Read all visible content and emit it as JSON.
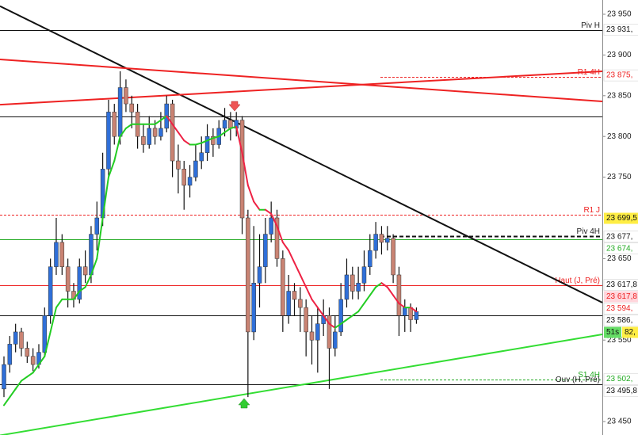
{
  "chart_data": {
    "type": "candlestick",
    "up_color": "#2f6fd8",
    "down_color": "#c98373",
    "ma_up_color": "#22cc22",
    "ma_down_color": "#ee2244",
    "ylim": [
      23450,
      23950
    ],
    "yticks": [
      {
        "value": 23950,
        "label": "23 950"
      },
      {
        "value": 23900,
        "label": "23 900"
      },
      {
        "value": 23850,
        "label": "23 850"
      },
      {
        "value": 23800,
        "label": "23 800"
      },
      {
        "value": 23750,
        "label": "23 750"
      },
      {
        "value": 23650,
        "label": "23 650"
      },
      {
        "value": 23550,
        "label": "23 550"
      },
      {
        "value": 23450,
        "label": "23 450"
      }
    ],
    "candles": [
      [
        23490,
        23530,
        23480,
        23520
      ],
      [
        23520,
        23555,
        23510,
        23545
      ],
      [
        23545,
        23570,
        23535,
        23560
      ],
      [
        23560,
        23565,
        23530,
        23540
      ],
      [
        23540,
        23548,
        23522,
        23530
      ],
      [
        23530,
        23540,
        23512,
        23520
      ],
      [
        23520,
        23545,
        23515,
        23535
      ],
      [
        23535,
        23590,
        23530,
        23580
      ],
      [
        23580,
        23650,
        23570,
        23640
      ],
      [
        23640,
        23700,
        23630,
        23670
      ],
      [
        23670,
        23680,
        23630,
        23640
      ],
      [
        23640,
        23650,
        23590,
        23610
      ],
      [
        23610,
        23620,
        23590,
        23600
      ],
      [
        23600,
        23650,
        23595,
        23640
      ],
      [
        23640,
        23660,
        23620,
        23630
      ],
      [
        23630,
        23690,
        23620,
        23680
      ],
      [
        23680,
        23720,
        23660,
        23700
      ],
      [
        23700,
        23780,
        23690,
        23760
      ],
      [
        23760,
        23845,
        23750,
        23830
      ],
      [
        23830,
        23840,
        23790,
        23800
      ],
      [
        23800,
        23880,
        23790,
        23860
      ],
      [
        23860,
        23870,
        23830,
        23840
      ],
      [
        23840,
        23850,
        23810,
        23830
      ],
      [
        23830,
        23840,
        23785,
        23800
      ],
      [
        23800,
        23815,
        23780,
        23790
      ],
      [
        23790,
        23825,
        23785,
        23810
      ],
      [
        23810,
        23820,
        23790,
        23800
      ],
      [
        23800,
        23830,
        23795,
        23810
      ],
      [
        23810,
        23850,
        23805,
        23840
      ],
      [
        23840,
        23845,
        23750,
        23770
      ],
      [
        23770,
        23790,
        23730,
        23760
      ],
      [
        23760,
        23770,
        23710,
        23740
      ],
      [
        23740,
        23765,
        23725,
        23750
      ],
      [
        23750,
        23790,
        23745,
        23770
      ],
      [
        23770,
        23800,
        23760,
        23780
      ],
      [
        23780,
        23815,
        23770,
        23800
      ],
      [
        23800,
        23810,
        23775,
        23790
      ],
      [
        23790,
        23820,
        23785,
        23810
      ],
      [
        23810,
        23835,
        23800,
        23820
      ],
      [
        23820,
        23830,
        23795,
        23810
      ],
      [
        23810,
        23830,
        23800,
        23820
      ],
      [
        23820,
        23825,
        23680,
        23700
      ],
      [
        23700,
        23710,
        23480,
        23560
      ],
      [
        23560,
        23690,
        23550,
        23620
      ],
      [
        23620,
        23680,
        23590,
        23640
      ],
      [
        23640,
        23700,
        23620,
        23680
      ],
      [
        23680,
        23720,
        23670,
        23700
      ],
      [
        23700,
        23710,
        23640,
        23650
      ],
      [
        23650,
        23660,
        23560,
        23580
      ],
      [
        23580,
        23630,
        23570,
        23610
      ],
      [
        23610,
        23620,
        23580,
        23600
      ],
      [
        23600,
        23615,
        23560,
        23590
      ],
      [
        23590,
        23600,
        23530,
        23560
      ],
      [
        23560,
        23580,
        23520,
        23550
      ],
      [
        23550,
        23590,
        23510,
        23570
      ],
      [
        23570,
        23600,
        23555,
        23580
      ],
      [
        23580,
        23590,
        23490,
        23540
      ],
      [
        23540,
        23580,
        23530,
        23560
      ],
      [
        23560,
        23620,
        23555,
        23600
      ],
      [
        23600,
        23650,
        23590,
        23630
      ],
      [
        23630,
        23640,
        23600,
        23610
      ],
      [
        23610,
        23640,
        23600,
        23620
      ],
      [
        23620,
        23660,
        23610,
        23640
      ],
      [
        23640,
        23680,
        23630,
        23660
      ],
      [
        23660,
        23695,
        23650,
        23680
      ],
      [
        23680,
        23690,
        23655,
        23670
      ],
      [
        23670,
        23690,
        23660,
        23675
      ],
      [
        23675,
        23680,
        23620,
        23630
      ],
      [
        23630,
        23640,
        23555,
        23580
      ],
      [
        23580,
        23600,
        23560,
        23590
      ],
      [
        23590,
        23595,
        23560,
        23575
      ],
      [
        23575,
        23590,
        23570,
        23585
      ]
    ],
    "ma": [
      23470,
      23480,
      23490,
      23500,
      23505,
      23510,
      23520,
      23530,
      23560,
      23590,
      23600,
      23600,
      23600,
      23610,
      23615,
      23630,
      23650,
      23700,
      23750,
      23770,
      23800,
      23810,
      23815,
      23815,
      23815,
      23815,
      23815,
      23820,
      23825,
      23815,
      23805,
      23795,
      23790,
      23790,
      23792,
      23795,
      23798,
      23800,
      23805,
      23810,
      23812,
      23780,
      23740,
      23720,
      23710,
      23710,
      23705,
      23690,
      23670,
      23660,
      23645,
      23630,
      23615,
      23600,
      23590,
      23580,
      23570,
      23565,
      23570,
      23575,
      23580,
      23585,
      23595,
      23605,
      23615,
      23620,
      23615,
      23605,
      23595,
      23590,
      23590,
      23585
    ],
    "trendlines": [
      {
        "color": "#111111",
        "start": 23960,
        "end": 23596
      },
      {
        "color": "#ee2222",
        "start": 23894.6,
        "end": 23843
      },
      {
        "color": "#ee2222",
        "start": 23839,
        "end": 23880
      },
      {
        "color": "#33dd33",
        "start": 23433,
        "end": 23557
      }
    ],
    "levels": [
      {
        "name": "Piv H",
        "value": 23931,
        "color": "#111111",
        "dash": false,
        "full": true
      },
      {
        "value": 23825,
        "color": "#111111",
        "dash": false,
        "full": true
      },
      {
        "name": "R1 4H",
        "value": 23873,
        "color": "#ee2222",
        "dash": true,
        "full": false
      },
      {
        "name": "R1 J",
        "value": 23704,
        "color": "#ee2222",
        "dash": true,
        "full": true
      },
      {
        "name": "Piv 4H",
        "value": 23678,
        "color": "#111111",
        "dash": true,
        "full": false,
        "thick": true
      },
      {
        "value": 23674,
        "color": "#22aa22",
        "dash": false,
        "full": true
      },
      {
        "name": "Haut (J, Pré)",
        "value": 23617.8,
        "color": "#ee2222",
        "dash": false,
        "full": true
      },
      {
        "value": 23580,
        "color": "#111111",
        "dash": false,
        "full": true
      },
      {
        "name": "S1 4H",
        "value": 23502,
        "color": "#22aa22",
        "dash": true,
        "full": false
      },
      {
        "name": "Ouv (H, Pré)",
        "value": 23495.8,
        "color": "#111111",
        "dash": false,
        "full": true
      }
    ],
    "tags": [
      {
        "label": "23 931,",
        "value": 23931,
        "color": "#111111",
        "bg": "#ffffff"
      },
      {
        "label": "23 875,",
        "value": 23875,
        "color": "#ee2222",
        "bg": "#ffffff"
      },
      {
        "label": "23 699,5",
        "value": 23699.5,
        "color": "#111111",
        "bg": "#ffee44"
      },
      {
        "label": "23 677,",
        "value": 23677,
        "color": "#111111",
        "bg": "#ffffff"
      },
      {
        "label": "23 674,",
        "value": 23674,
        "color": "#22aa22",
        "bg": "#ffffff"
      },
      {
        "label": "23 617,8",
        "value": 23617.8,
        "color": "#111111",
        "bg": "#ffffff"
      },
      {
        "label": "23 617,8",
        "value": 23617.8,
        "color": "#ee2222",
        "bg": "#ffd6dc"
      },
      {
        "label": "23 594,",
        "value": 23594,
        "color": "#ee2222",
        "bg": "#ffffff"
      },
      {
        "label": "23 586,",
        "value": 23586,
        "color": "#111111",
        "bg": "#ffffff"
      },
      {
        "label": "82,",
        "value": 23582,
        "color": "#111111",
        "bg": "#ffee44",
        "timer": "51s"
      },
      {
        "label": "23 502,",
        "value": 23502,
        "color": "#22aa22",
        "bg": "#ffffff"
      },
      {
        "label": "23 495,8",
        "value": 23495.8,
        "color": "#111111",
        "bg": "#ffffff"
      }
    ]
  }
}
